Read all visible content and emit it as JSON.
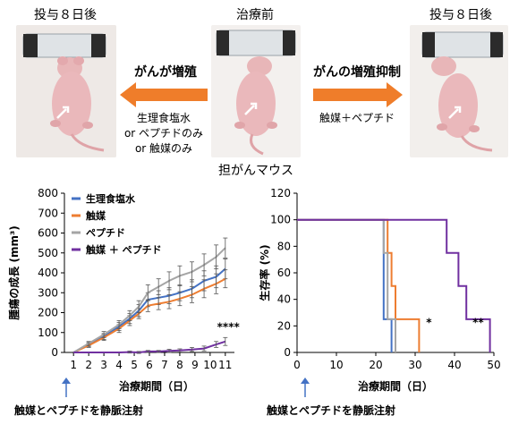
{
  "top": {
    "left_label": "投与８日後",
    "center_label": "治療前",
    "right_label": "投与８日後",
    "left_arrow_label": "がんが増殖",
    "right_arrow_label": "がんの増殖抑制",
    "left_conditions": [
      "生理食塩水",
      "or ペプチドのみ",
      "or 触媒のみ"
    ],
    "right_conditions": "触媒＋ペプチド",
    "caption": "担がんマウス",
    "arrow_color": "#ef7d2a",
    "photo_bg": "#f3f0ee"
  },
  "bottom_notes": {
    "left": "触媒とペプチドを静脈注射",
    "right": "触媒とペプチドを静脈注射"
  },
  "chart_data": [
    {
      "type": "line",
      "ylabel": "腫瘍の成長 (mm³)",
      "xlabel": "治療期間（日）",
      "x": [
        1,
        2,
        3,
        4,
        5,
        6,
        7,
        8,
        9,
        10,
        11
      ],
      "ylim": [
        0,
        800
      ],
      "yticks": [
        0,
        100,
        200,
        300,
        400,
        500,
        600,
        700,
        800
      ],
      "xticks": [
        1,
        2,
        3,
        4,
        5,
        6,
        7,
        8,
        9,
        10,
        11
      ],
      "annotation": "****",
      "series": [
        {
          "name": "生理食塩水",
          "color": "#4472c4",
          "x": [
            1,
            2,
            3,
            4,
            4.7,
            5.3,
            5.9,
            6.6,
            7.3,
            8,
            8.8,
            9.6,
            10.4,
            11
          ],
          "values": [
            0,
            40,
            80,
            130,
            170,
            210,
            265,
            275,
            285,
            300,
            320,
            360,
            380,
            420
          ],
          "err": [
            0,
            10,
            15,
            20,
            25,
            30,
            35,
            35,
            40,
            40,
            45,
            50,
            55,
            50
          ]
        },
        {
          "name": "触媒",
          "color": "#ed7d31",
          "x": [
            1,
            2,
            3,
            4,
            4.7,
            5.3,
            5.9,
            6.6,
            7.3,
            8,
            8.8,
            9.6,
            10.4,
            11
          ],
          "values": [
            0,
            35,
            75,
            120,
            160,
            195,
            235,
            245,
            255,
            270,
            290,
            320,
            345,
            370
          ],
          "err": [
            0,
            10,
            15,
            20,
            25,
            25,
            30,
            30,
            35,
            35,
            40,
            45,
            50,
            45
          ]
        },
        {
          "name": "ペプチド",
          "color": "#a5a5a5",
          "x": [
            1,
            2,
            3,
            4,
            4.7,
            5.3,
            5.9,
            6.6,
            7.3,
            8,
            8.8,
            9.6,
            10.4,
            11
          ],
          "values": [
            0,
            45,
            90,
            140,
            185,
            230,
            300,
            330,
            360,
            385,
            405,
            440,
            480,
            525
          ],
          "err": [
            0,
            10,
            15,
            20,
            25,
            30,
            40,
            40,
            45,
            50,
            50,
            55,
            60,
            50
          ]
        },
        {
          "name": "触媒 ＋ ペプチド",
          "color": "#7030a0",
          "x": [
            1,
            2,
            3,
            4,
            4.7,
            5.3,
            5.9,
            6.6,
            7.3,
            8,
            8.8,
            9.6,
            10.4,
            11
          ],
          "values": [
            0,
            0,
            0,
            0,
            2,
            0,
            5,
            5,
            8,
            10,
            15,
            20,
            40,
            55
          ],
          "err": [
            0,
            0,
            0,
            0,
            5,
            5,
            5,
            5,
            8,
            8,
            10,
            12,
            15,
            20
          ]
        }
      ]
    },
    {
      "type": "line",
      "ylabel": "生存率 (%)",
      "xlabel": "治療期間（日）",
      "xlim": [
        0,
        50
      ],
      "ylim": [
        0,
        120
      ],
      "xticks": [
        0,
        10,
        20,
        30,
        40,
        50
      ],
      "yticks": [
        0,
        20,
        40,
        60,
        80,
        100,
        120
      ],
      "annotations": [
        "*",
        "**"
      ],
      "series": [
        {
          "name": "生理食塩水",
          "color": "#4472c4",
          "steps": [
            [
              0,
              100
            ],
            [
              22,
              100
            ],
            [
              22,
              25
            ],
            [
              24,
              25
            ],
            [
              24,
              0
            ]
          ]
        },
        {
          "name": "触媒",
          "color": "#ed7d31",
          "steps": [
            [
              0,
              100
            ],
            [
              23,
              100
            ],
            [
              23,
              75
            ],
            [
              24,
              75
            ],
            [
              24,
              50
            ],
            [
              25,
              50
            ],
            [
              25,
              25
            ],
            [
              31,
              25
            ],
            [
              31,
              0
            ]
          ]
        },
        {
          "name": "ペプチド",
          "color": "#a5a5a5",
          "steps": [
            [
              0,
              100
            ],
            [
              22,
              100
            ],
            [
              22,
              75
            ],
            [
              23,
              75
            ],
            [
              23,
              25
            ],
            [
              25,
              25
            ],
            [
              25,
              0
            ]
          ]
        },
        {
          "name": "触媒 ＋ ペプチド",
          "color": "#7030a0",
          "steps": [
            [
              0,
              100
            ],
            [
              38,
              100
            ],
            [
              38,
              75
            ],
            [
              41,
              75
            ],
            [
              41,
              50
            ],
            [
              43,
              50
            ],
            [
              43,
              25
            ],
            [
              49,
              25
            ],
            [
              49,
              0
            ]
          ]
        }
      ]
    }
  ]
}
